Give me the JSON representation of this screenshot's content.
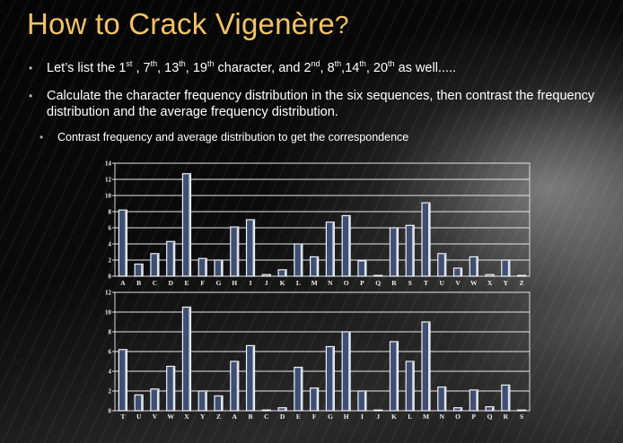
{
  "title": {
    "text": "How to Crack Vigenère",
    "question_mark": "?"
  },
  "bullets": [
    {
      "parts": [
        "Let’s list the 1",
        "st",
        " , 7",
        "th",
        ", 13",
        "th",
        ", 19",
        "th",
        " character, and 2",
        "nd",
        ", 8",
        "th",
        ",14",
        "th",
        ", 20",
        "th",
        " as well....."
      ]
    },
    {
      "text": "Calculate the character frequency distribution in the six sequences, then contrast the frequency distribution and the average frequency distribution."
    },
    {
      "text": "Contrast frequency and average distribution to get the correspondence"
    }
  ],
  "bullet_symbol": "•",
  "colors": {
    "title": "#f2c266",
    "bar": "#3f4f73",
    "text": "#ffffff"
  },
  "chart_data": [
    {
      "type": "bar",
      "categories": [
        "A",
        "B",
        "C",
        "D",
        "E",
        "F",
        "G",
        "H",
        "I",
        "J",
        "K",
        "L",
        "M",
        "N",
        "O",
        "P",
        "Q",
        "R",
        "S",
        "T",
        "U",
        "V",
        "W",
        "X",
        "Y",
        "Z"
      ],
      "values": [
        8.2,
        1.5,
        2.8,
        4.3,
        12.7,
        2.2,
        2.0,
        6.1,
        7.0,
        0.2,
        0.8,
        4.0,
        2.4,
        6.7,
        7.5,
        1.9,
        0.1,
        6.0,
        6.3,
        9.1,
        2.8,
        1.0,
        2.4,
        0.2,
        2.0,
        0.1
      ],
      "ylim": [
        0,
        14
      ],
      "yticks": [
        "0",
        "2",
        "4",
        "6",
        "8",
        "10",
        "12",
        "14"
      ],
      "grid": true
    },
    {
      "type": "bar",
      "categories": [
        "T",
        "U",
        "V",
        "W",
        "X",
        "Y",
        "Z",
        "A",
        "B",
        "C",
        "D",
        "E",
        "F",
        "G",
        "H",
        "I",
        "J",
        "K",
        "L",
        "M",
        "N",
        "O",
        "P",
        "Q",
        "R",
        "S"
      ],
      "values": [
        6.2,
        1.6,
        2.2,
        4.5,
        10.5,
        2.0,
        1.5,
        5.0,
        6.6,
        0.0,
        0.3,
        4.4,
        2.3,
        6.5,
        8.0,
        2.0,
        0.0,
        7.0,
        5.0,
        9.0,
        2.4,
        0.3,
        2.1,
        0.4,
        2.6,
        0.0
      ],
      "ylim": [
        0,
        12
      ],
      "yticks": [
        "0",
        "2",
        "4",
        "6",
        "8",
        "10",
        "12"
      ],
      "grid": true
    }
  ]
}
